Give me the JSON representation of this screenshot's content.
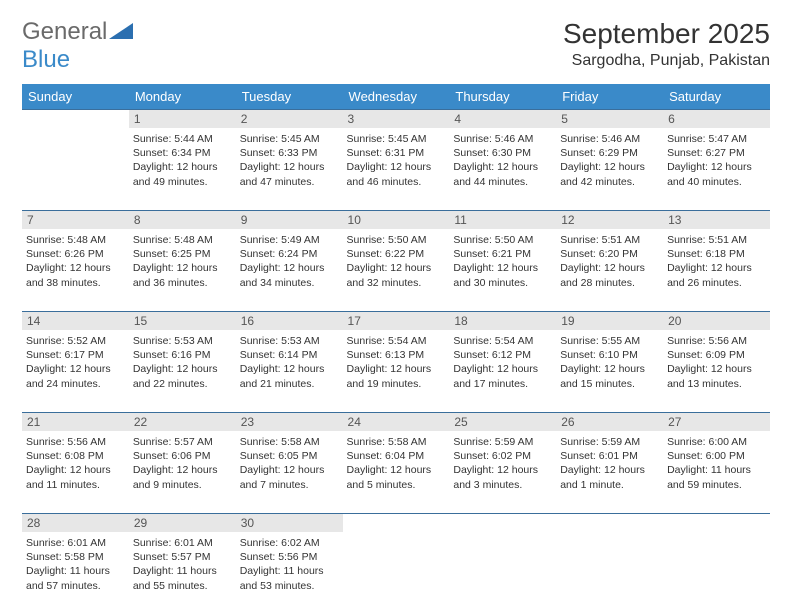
{
  "logo": {
    "text1": "General",
    "text2": "Blue"
  },
  "title": "September 2025",
  "location": "Sargodha, Punjab, Pakistan",
  "colors": {
    "header_bg": "#3a8ac9",
    "header_text": "#ffffff",
    "daynum_bg": "#e7e7e7",
    "daynum_border": "#3a6e9b",
    "body_text": "#333333",
    "logo_gray": "#6a6a6a",
    "logo_blue": "#3a8ac9"
  },
  "weekdays": [
    "Sunday",
    "Monday",
    "Tuesday",
    "Wednesday",
    "Thursday",
    "Friday",
    "Saturday"
  ],
  "weeks": [
    [
      null,
      {
        "n": "1",
        "sr": "5:44 AM",
        "ss": "6:34 PM",
        "dl": "12 hours and 49 minutes."
      },
      {
        "n": "2",
        "sr": "5:45 AM",
        "ss": "6:33 PM",
        "dl": "12 hours and 47 minutes."
      },
      {
        "n": "3",
        "sr": "5:45 AM",
        "ss": "6:31 PM",
        "dl": "12 hours and 46 minutes."
      },
      {
        "n": "4",
        "sr": "5:46 AM",
        "ss": "6:30 PM",
        "dl": "12 hours and 44 minutes."
      },
      {
        "n": "5",
        "sr": "5:46 AM",
        "ss": "6:29 PM",
        "dl": "12 hours and 42 minutes."
      },
      {
        "n": "6",
        "sr": "5:47 AM",
        "ss": "6:27 PM",
        "dl": "12 hours and 40 minutes."
      }
    ],
    [
      {
        "n": "7",
        "sr": "5:48 AM",
        "ss": "6:26 PM",
        "dl": "12 hours and 38 minutes."
      },
      {
        "n": "8",
        "sr": "5:48 AM",
        "ss": "6:25 PM",
        "dl": "12 hours and 36 minutes."
      },
      {
        "n": "9",
        "sr": "5:49 AM",
        "ss": "6:24 PM",
        "dl": "12 hours and 34 minutes."
      },
      {
        "n": "10",
        "sr": "5:50 AM",
        "ss": "6:22 PM",
        "dl": "12 hours and 32 minutes."
      },
      {
        "n": "11",
        "sr": "5:50 AM",
        "ss": "6:21 PM",
        "dl": "12 hours and 30 minutes."
      },
      {
        "n": "12",
        "sr": "5:51 AM",
        "ss": "6:20 PM",
        "dl": "12 hours and 28 minutes."
      },
      {
        "n": "13",
        "sr": "5:51 AM",
        "ss": "6:18 PM",
        "dl": "12 hours and 26 minutes."
      }
    ],
    [
      {
        "n": "14",
        "sr": "5:52 AM",
        "ss": "6:17 PM",
        "dl": "12 hours and 24 minutes."
      },
      {
        "n": "15",
        "sr": "5:53 AM",
        "ss": "6:16 PM",
        "dl": "12 hours and 22 minutes."
      },
      {
        "n": "16",
        "sr": "5:53 AM",
        "ss": "6:14 PM",
        "dl": "12 hours and 21 minutes."
      },
      {
        "n": "17",
        "sr": "5:54 AM",
        "ss": "6:13 PM",
        "dl": "12 hours and 19 minutes."
      },
      {
        "n": "18",
        "sr": "5:54 AM",
        "ss": "6:12 PM",
        "dl": "12 hours and 17 minutes."
      },
      {
        "n": "19",
        "sr": "5:55 AM",
        "ss": "6:10 PM",
        "dl": "12 hours and 15 minutes."
      },
      {
        "n": "20",
        "sr": "5:56 AM",
        "ss": "6:09 PM",
        "dl": "12 hours and 13 minutes."
      }
    ],
    [
      {
        "n": "21",
        "sr": "5:56 AM",
        "ss": "6:08 PM",
        "dl": "12 hours and 11 minutes."
      },
      {
        "n": "22",
        "sr": "5:57 AM",
        "ss": "6:06 PM",
        "dl": "12 hours and 9 minutes."
      },
      {
        "n": "23",
        "sr": "5:58 AM",
        "ss": "6:05 PM",
        "dl": "12 hours and 7 minutes."
      },
      {
        "n": "24",
        "sr": "5:58 AM",
        "ss": "6:04 PM",
        "dl": "12 hours and 5 minutes."
      },
      {
        "n": "25",
        "sr": "5:59 AM",
        "ss": "6:02 PM",
        "dl": "12 hours and 3 minutes."
      },
      {
        "n": "26",
        "sr": "5:59 AM",
        "ss": "6:01 PM",
        "dl": "12 hours and 1 minute."
      },
      {
        "n": "27",
        "sr": "6:00 AM",
        "ss": "6:00 PM",
        "dl": "11 hours and 59 minutes."
      }
    ],
    [
      {
        "n": "28",
        "sr": "6:01 AM",
        "ss": "5:58 PM",
        "dl": "11 hours and 57 minutes."
      },
      {
        "n": "29",
        "sr": "6:01 AM",
        "ss": "5:57 PM",
        "dl": "11 hours and 55 minutes."
      },
      {
        "n": "30",
        "sr": "6:02 AM",
        "ss": "5:56 PM",
        "dl": "11 hours and 53 minutes."
      },
      null,
      null,
      null,
      null
    ]
  ],
  "labels": {
    "sunrise": "Sunrise:",
    "sunset": "Sunset:",
    "daylight": "Daylight:"
  }
}
